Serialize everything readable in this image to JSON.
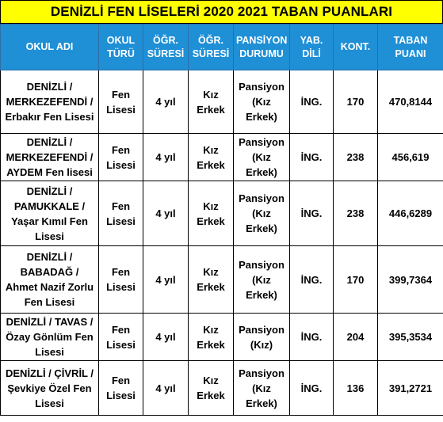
{
  "title": "DENİZLİ FEN LİSELERİ 2020 2021 TABAN PUANLARI",
  "headers": {
    "okul_adi": "OKUL ADI",
    "okul_turu": "OKUL TÜRÜ",
    "ogr_suresi_1": "ÖĞR. SÜRESİ",
    "ogr_suresi_2": "ÖĞR. SÜRESİ",
    "pansiyon": "PANSİYON DURUMU",
    "yab_dili": "YAB. DİLİ",
    "kont": "KONT.",
    "taban": "TABAN PUANI"
  },
  "rows": [
    {
      "okul": "DENİZLİ / MERKEZEFENDİ / Erbakır Fen Lisesi",
      "tur": "Fen Lisesi",
      "sure": "4 yıl",
      "cins": "Kız Erkek",
      "pansiyon": "Pansiyon (Kız Erkek)",
      "dil": "İNG.",
      "kont": "170",
      "puan": "470,8144"
    },
    {
      "okul": "DENİZLİ / MERKEZEFENDİ / AYDEM Fen lisesi",
      "tur": "Fen Lisesi",
      "sure": "4 yıl",
      "cins": "Kız Erkek",
      "pansiyon": "Pansiyon (Kız Erkek)",
      "dil": "İNG.",
      "kont": "238",
      "puan": "456,619"
    },
    {
      "okul": "DENİZLİ / PAMUKKALE / Yaşar Kımıl Fen Lisesi",
      "tur": "Fen Lisesi",
      "sure": "4 yıl",
      "cins": "Kız Erkek",
      "pansiyon": "Pansiyon (Kız Erkek)",
      "dil": "İNG.",
      "kont": "238",
      "puan": "446,6289"
    },
    {
      "okul": "DENİZLİ / BABADAĞ / Ahmet Nazif Zorlu Fen Lisesi",
      "tur": "Fen Lisesi",
      "sure": "4 yıl",
      "cins": "Kız Erkek",
      "pansiyon": "Pansiyon (Kız Erkek)",
      "dil": "İNG.",
      "kont": "170",
      "puan": "399,7364"
    },
    {
      "okul": "DENİZLİ / TAVAS / Özay Gönlüm Fen Lisesi",
      "tur": "Fen Lisesi",
      "sure": "4 yıl",
      "cins": "Kız Erkek",
      "pansiyon": "Pansiyon (Kız)",
      "dil": "İNG.",
      "kont": "204",
      "puan": "395,3534"
    },
    {
      "okul": "DENİZLİ / ÇİVRİL / Şevkiye Özel Fen Lisesi",
      "tur": "Fen Lisesi",
      "sure": "4 yıl",
      "cins": "Kız Erkek",
      "pansiyon": "Pansiyon (Kız Erkek)",
      "dil": "İNG.",
      "kont": "136",
      "puan": "391,2721"
    }
  ],
  "colors": {
    "title_bg": "#ffff00",
    "header_bg": "#1f8fd6",
    "header_text": "#ffffff"
  }
}
